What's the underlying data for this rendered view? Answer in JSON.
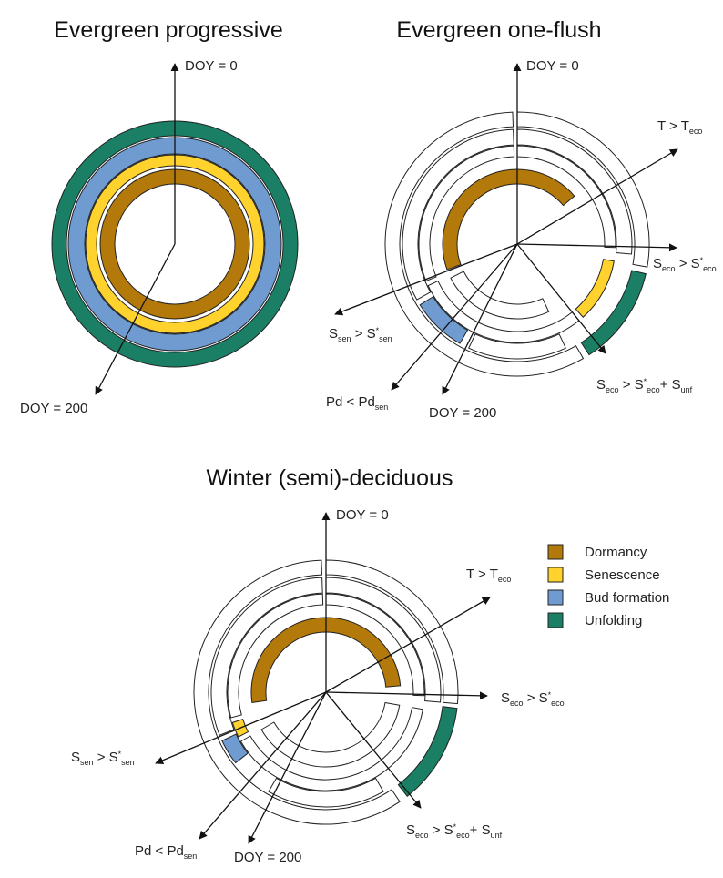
{
  "colors": {
    "dormancy": "#B3790A",
    "senescence": "#FFD22E",
    "bud_formation": "#6F9BD1",
    "unfolding": "#1A7F64",
    "outline": "#222222",
    "empty": "#ffffff"
  },
  "legend": {
    "items": [
      {
        "key": "dormancy",
        "label": "Dormancy"
      },
      {
        "key": "senescence",
        "label": "Senescence"
      },
      {
        "key": "bud_formation",
        "label": "Bud formation"
      },
      {
        "key": "unfolding",
        "label": "Unfolding"
      }
    ]
  },
  "panels": [
    {
      "title": "Evergreen progressive",
      "labels": {
        "doy0": "DOY = 0",
        "doy200": "DOY = 200"
      },
      "rings": [
        {
          "phase": "unfolding",
          "days": [
            0,
            365
          ]
        },
        {
          "phase": "bud_formation",
          "days": [
            0,
            365
          ]
        },
        {
          "phase": "senescence",
          "days": [
            0,
            365
          ]
        },
        {
          "phase": "dormancy",
          "days": [
            0,
            365
          ]
        }
      ]
    },
    {
      "title": "Evergreen one-flush",
      "labels": {
        "doy0": "DOY = 0",
        "doy200": "DOY = 200",
        "t_teco": {
          "base": "T > T",
          "sub": "eco"
        },
        "seco": {
          "parts": [
            {
              "t": "S"
            },
            {
              "t": "eco",
              "sub": true
            },
            {
              "t": " > S"
            },
            {
              "t": "*",
              "sub": false,
              "sup": true
            },
            {
              "t": "eco",
              "sub": true
            }
          ]
        },
        "seco_unf": {
          "parts": [
            {
              "t": "S"
            },
            {
              "t": "eco",
              "sub": true
            },
            {
              "t": " > S"
            },
            {
              "t": "*",
              "sup": true
            },
            {
              "t": "eco",
              "sub": true
            },
            {
              "t": "+ S"
            },
            {
              "t": "unf",
              "sub": true
            }
          ]
        },
        "ssen": {
          "parts": [
            {
              "t": "S"
            },
            {
              "t": "sen",
              "sub": true
            },
            {
              "t": " > S"
            },
            {
              "t": "*",
              "sup": true
            },
            {
              "t": "sen",
              "sub": true
            }
          ]
        },
        "pd": {
          "parts": [
            {
              "t": "Pd < Pd"
            },
            {
              "t": "sen",
              "sub": true
            }
          ]
        }
      }
    },
    {
      "title": "Winter (semi)-deciduous",
      "labels": {
        "doy0": "DOY = 0",
        "doy200": "DOY = 200",
        "t_teco": {
          "base": "T > T",
          "sub": "eco"
        },
        "seco": {
          "parts": [
            {
              "t": "S"
            },
            {
              "t": "eco",
              "sub": true
            },
            {
              "t": " > S"
            },
            {
              "t": "*",
              "sup": true
            },
            {
              "t": "eco",
              "sub": true
            }
          ]
        },
        "seco_unf": {
          "parts": [
            {
              "t": "S"
            },
            {
              "t": "eco",
              "sub": true
            },
            {
              "t": " > S"
            },
            {
              "t": "*",
              "sup": true
            },
            {
              "t": "eco",
              "sub": true
            },
            {
              "t": "+ S"
            },
            {
              "t": "unf",
              "sub": true
            }
          ]
        },
        "ssen": {
          "parts": [
            {
              "t": "S"
            },
            {
              "t": "sen",
              "sub": true
            },
            {
              "t": " > S"
            },
            {
              "t": "*",
              "sup": true
            },
            {
              "t": "sen",
              "sub": true
            }
          ]
        },
        "pd": {
          "parts": [
            {
              "t": "Pd < Pd"
            },
            {
              "t": "sen",
              "sub": true
            }
          ]
        }
      }
    }
  ]
}
